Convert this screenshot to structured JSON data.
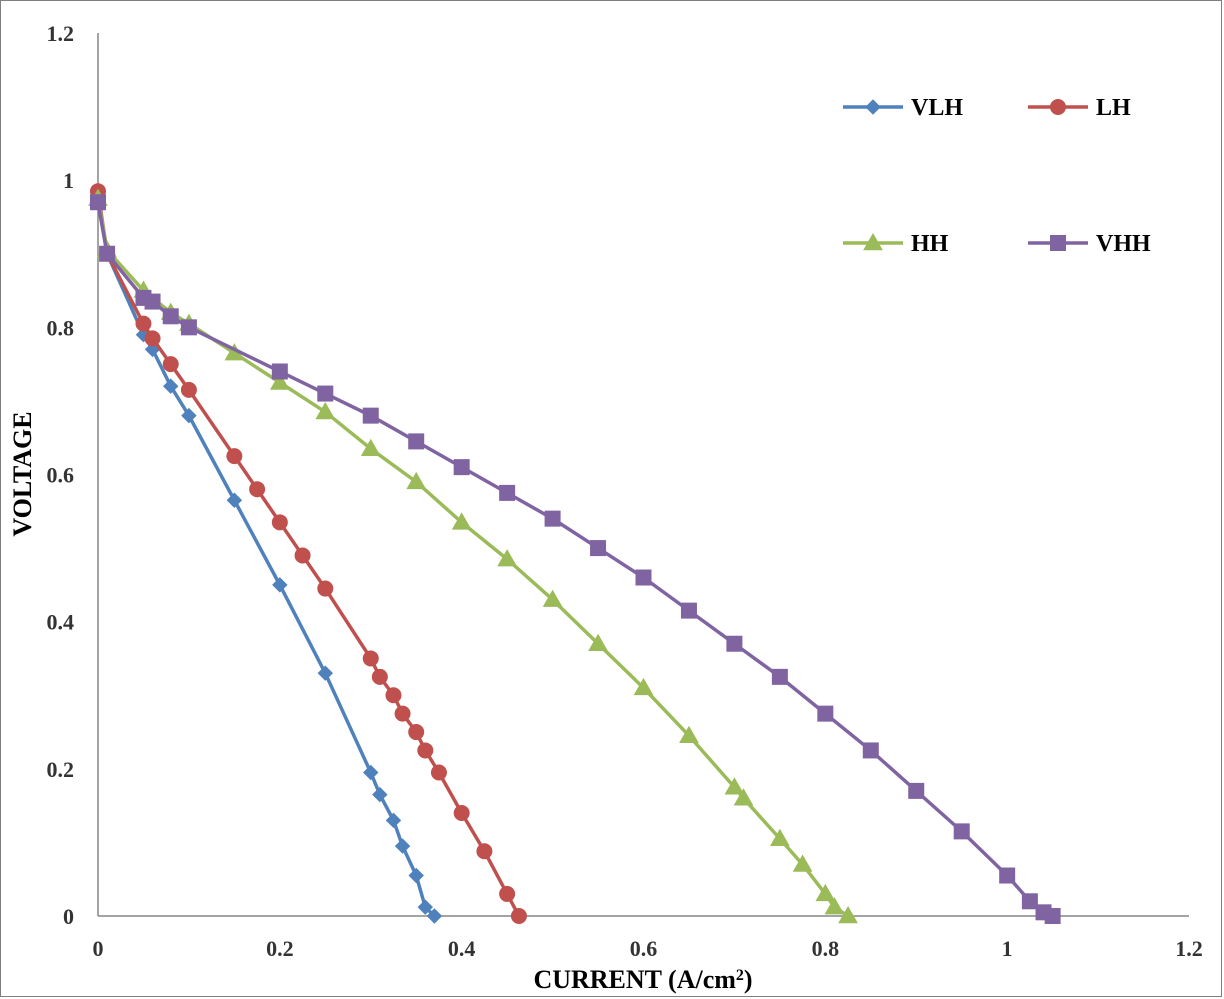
{
  "chart_data": {
    "type": "line",
    "title": "",
    "xlabel": "CURRENT (A/cm",
    "xlabel_sup": "2",
    "xlabel_tail": ")",
    "ylabel": "VOLTAGE",
    "xlim": [
      0,
      1.2
    ],
    "ylim": [
      0,
      1.2
    ],
    "x_ticks": [
      "0",
      "0.2",
      "0.4",
      "0.6",
      "0.8",
      "1",
      "1.2"
    ],
    "y_ticks": [
      "0",
      "0.2",
      "0.4",
      "0.6",
      "0.8",
      "1",
      "1.2"
    ],
    "grid": false,
    "legend_position": "top-right",
    "series": [
      {
        "name": "VLH",
        "color": "#4f81bd",
        "marker": "diamond",
        "x": [
          0,
          0.01,
          0.05,
          0.06,
          0.08,
          0.1,
          0.15,
          0.2,
          0.25,
          0.3,
          0.31,
          0.325,
          0.335,
          0.35,
          0.36,
          0.37
        ],
        "y": [
          0.97,
          0.9,
          0.79,
          0.77,
          0.72,
          0.68,
          0.565,
          0.45,
          0.33,
          0.195,
          0.165,
          0.13,
          0.095,
          0.055,
          0.012,
          0
        ]
      },
      {
        "name": "LH",
        "color": "#c0504d",
        "marker": "circle",
        "x": [
          0,
          0.01,
          0.05,
          0.06,
          0.08,
          0.1,
          0.15,
          0.175,
          0.2,
          0.225,
          0.25,
          0.3,
          0.31,
          0.325,
          0.335,
          0.35,
          0.36,
          0.375,
          0.4,
          0.425,
          0.45,
          0.463
        ],
        "y": [
          0.985,
          0.9,
          0.805,
          0.785,
          0.75,
          0.715,
          0.625,
          0.58,
          0.535,
          0.49,
          0.445,
          0.35,
          0.325,
          0.3,
          0.275,
          0.25,
          0.225,
          0.195,
          0.14,
          0.088,
          0.03,
          0
        ]
      },
      {
        "name": "HH",
        "color": "#9bbb59",
        "marker": "triangle",
        "x": [
          0,
          0.01,
          0.05,
          0.08,
          0.1,
          0.15,
          0.2,
          0.25,
          0.3,
          0.35,
          0.4,
          0.45,
          0.5,
          0.55,
          0.6,
          0.65,
          0.7,
          0.71,
          0.75,
          0.775,
          0.8,
          0.81,
          0.825
        ],
        "y": [
          0.975,
          0.905,
          0.85,
          0.82,
          0.805,
          0.765,
          0.725,
          0.685,
          0.635,
          0.59,
          0.535,
          0.485,
          0.43,
          0.37,
          0.31,
          0.245,
          0.175,
          0.16,
          0.105,
          0.07,
          0.03,
          0.012,
          0
        ]
      },
      {
        "name": "VHH",
        "color": "#8064a2",
        "marker": "square",
        "x": [
          0,
          0.01,
          0.05,
          0.06,
          0.08,
          0.1,
          0.2,
          0.25,
          0.3,
          0.35,
          0.4,
          0.45,
          0.5,
          0.55,
          0.6,
          0.65,
          0.7,
          0.75,
          0.8,
          0.85,
          0.9,
          0.95,
          1.0,
          1.025,
          1.04,
          1.05
        ],
        "y": [
          0.97,
          0.9,
          0.84,
          0.835,
          0.815,
          0.8,
          0.74,
          0.71,
          0.68,
          0.645,
          0.61,
          0.575,
          0.54,
          0.5,
          0.46,
          0.415,
          0.37,
          0.325,
          0.275,
          0.225,
          0.17,
          0.115,
          0.055,
          0.02,
          0.005,
          0
        ]
      }
    ]
  }
}
